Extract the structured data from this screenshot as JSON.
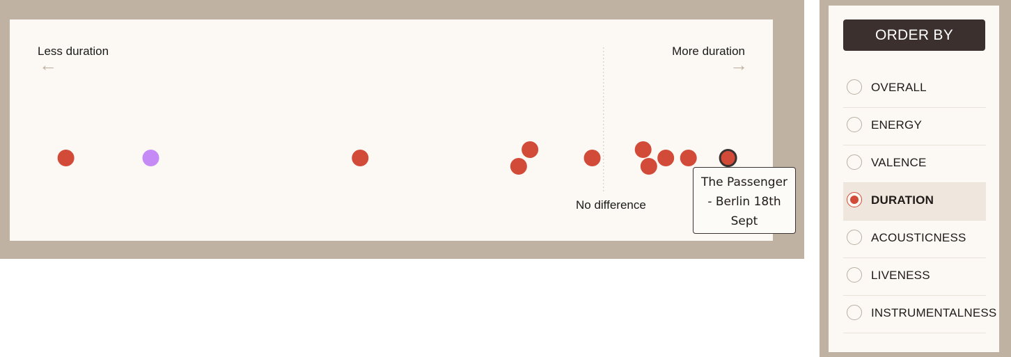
{
  "colors": {
    "accent": "#d24a38",
    "highlight": "#c58af5",
    "frame": "#c0b2a3",
    "card": "#fcf9f4",
    "dark": "#3b302d"
  },
  "chart": {
    "left_label": "Less duration",
    "right_label": "More duration",
    "center_label": "No difference",
    "left_arrow": "←",
    "right_arrow": "→",
    "tooltip_text": "The Passenger - Berlin 18th Sept"
  },
  "chart_data": {
    "type": "scatter",
    "x_scale": "relative duration difference (unlabeled)",
    "points": [
      {
        "x": -0.95,
        "row": 0,
        "highlight": false
      },
      {
        "x": -0.8,
        "row": 0,
        "highlight": true
      },
      {
        "x": -0.43,
        "row": 0,
        "highlight": false
      },
      {
        "x": -0.13,
        "row": -1,
        "highlight": false
      },
      {
        "x": -0.15,
        "row": 1,
        "highlight": false
      },
      {
        "x": -0.02,
        "row": 0,
        "highlight": false
      },
      {
        "x": 0.07,
        "row": -1,
        "highlight": false
      },
      {
        "x": 0.08,
        "row": 1,
        "highlight": false
      },
      {
        "x": 0.11,
        "row": 0,
        "highlight": false
      },
      {
        "x": 0.15,
        "row": 0,
        "highlight": false
      },
      {
        "x": 0.22,
        "row": 0,
        "highlight": false,
        "selected": true,
        "label": "The Passenger - Berlin 18th Sept"
      }
    ],
    "reference_line_x": 0
  },
  "sidebar": {
    "title": "ORDER BY",
    "options": [
      {
        "label": "OVERALL",
        "selected": false
      },
      {
        "label": "ENERGY",
        "selected": false
      },
      {
        "label": "VALENCE",
        "selected": false
      },
      {
        "label": "DURATION",
        "selected": true
      },
      {
        "label": "ACOUSTICNESS",
        "selected": false
      },
      {
        "label": "LIVENESS",
        "selected": false
      },
      {
        "label": "INSTRUMENTALNESS",
        "selected": false
      }
    ]
  }
}
